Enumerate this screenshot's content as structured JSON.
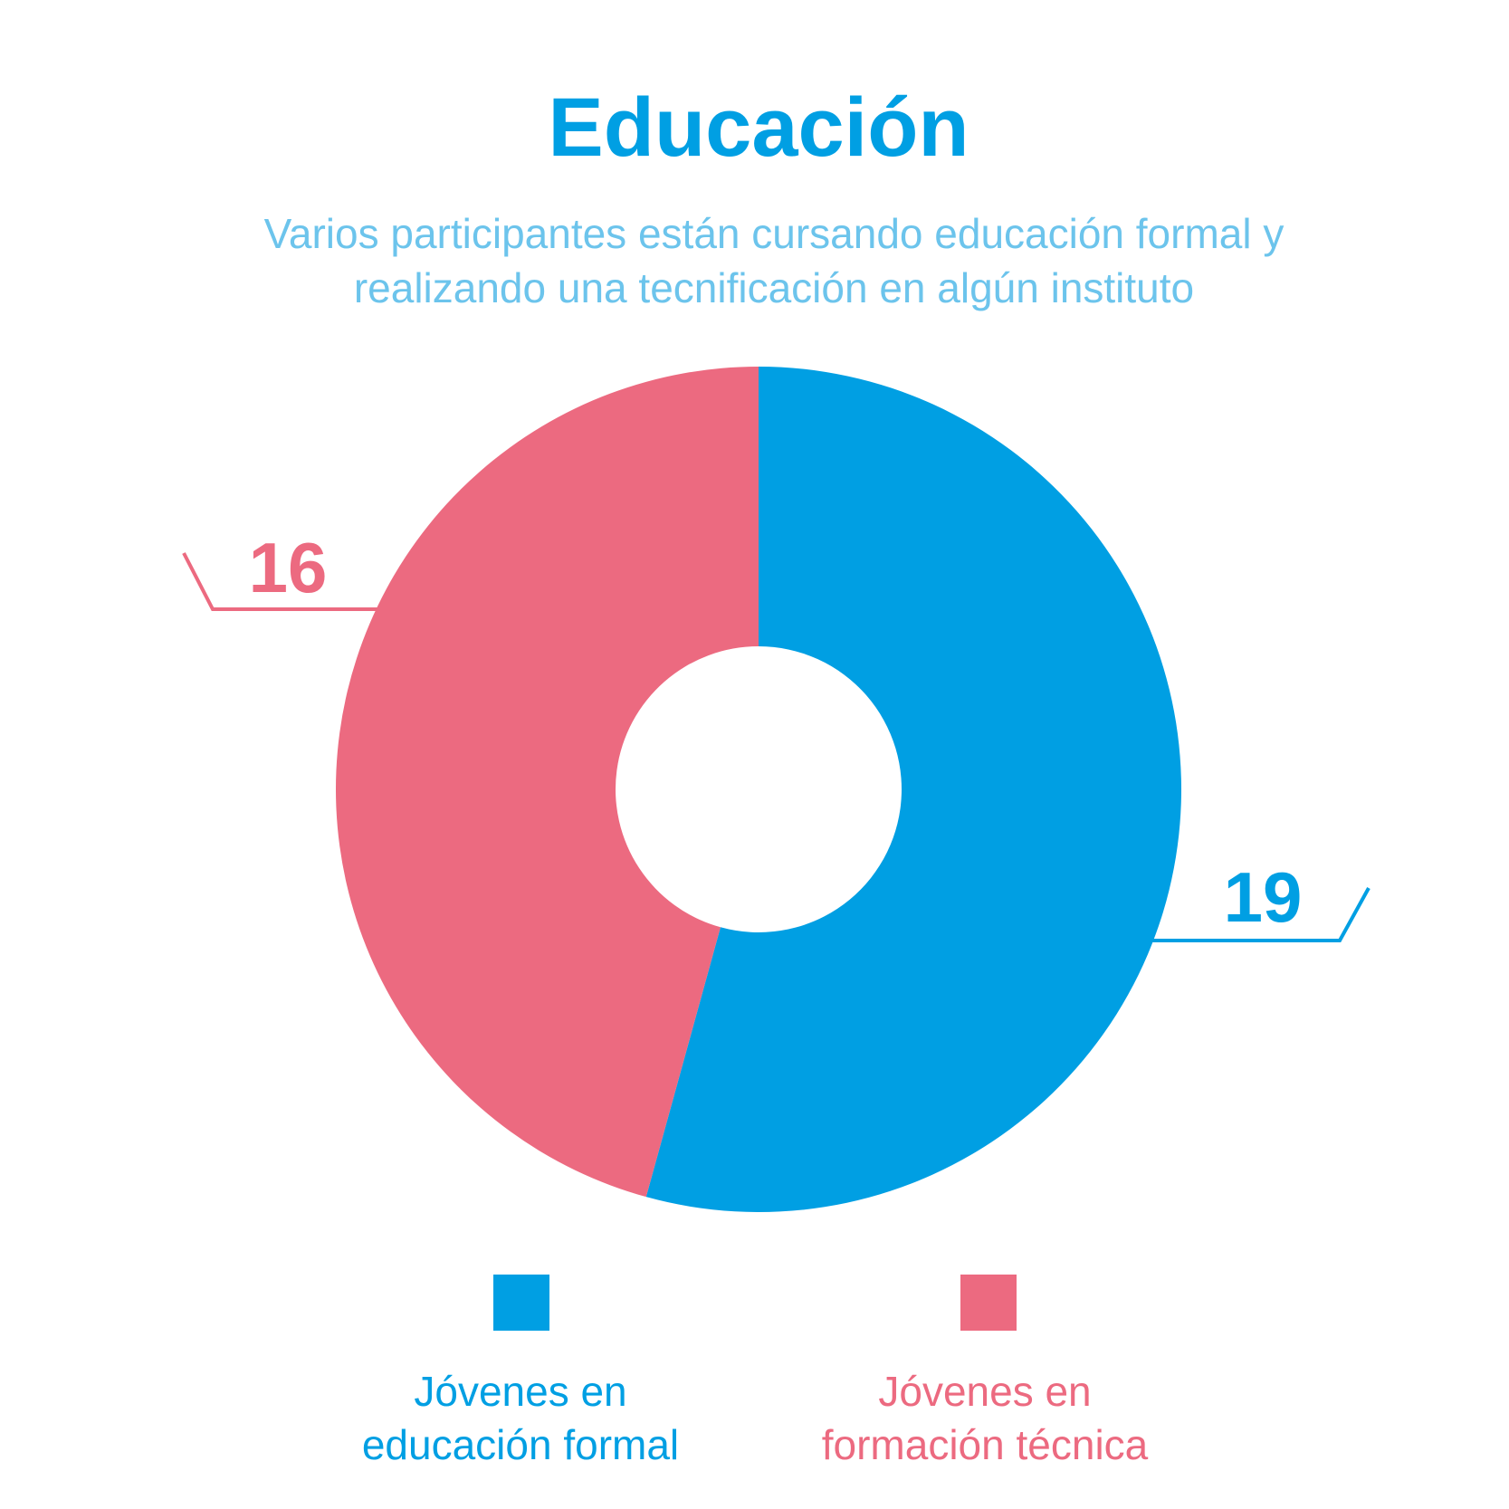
{
  "chart_data": {
    "type": "donut",
    "title": "Educación",
    "subtitle": [
      "Varios participantes están  cursando educación formal y",
      "realizando una tecnificación en algún instituto"
    ],
    "series": [
      {
        "name": "Jóvenes en educación formal",
        "color": "#009fe3",
        "values": [
          19
        ]
      },
      {
        "name": "Jóvenes en formación técnica",
        "color": "#ec6a80",
        "values": [
          16
        ]
      }
    ]
  }
}
